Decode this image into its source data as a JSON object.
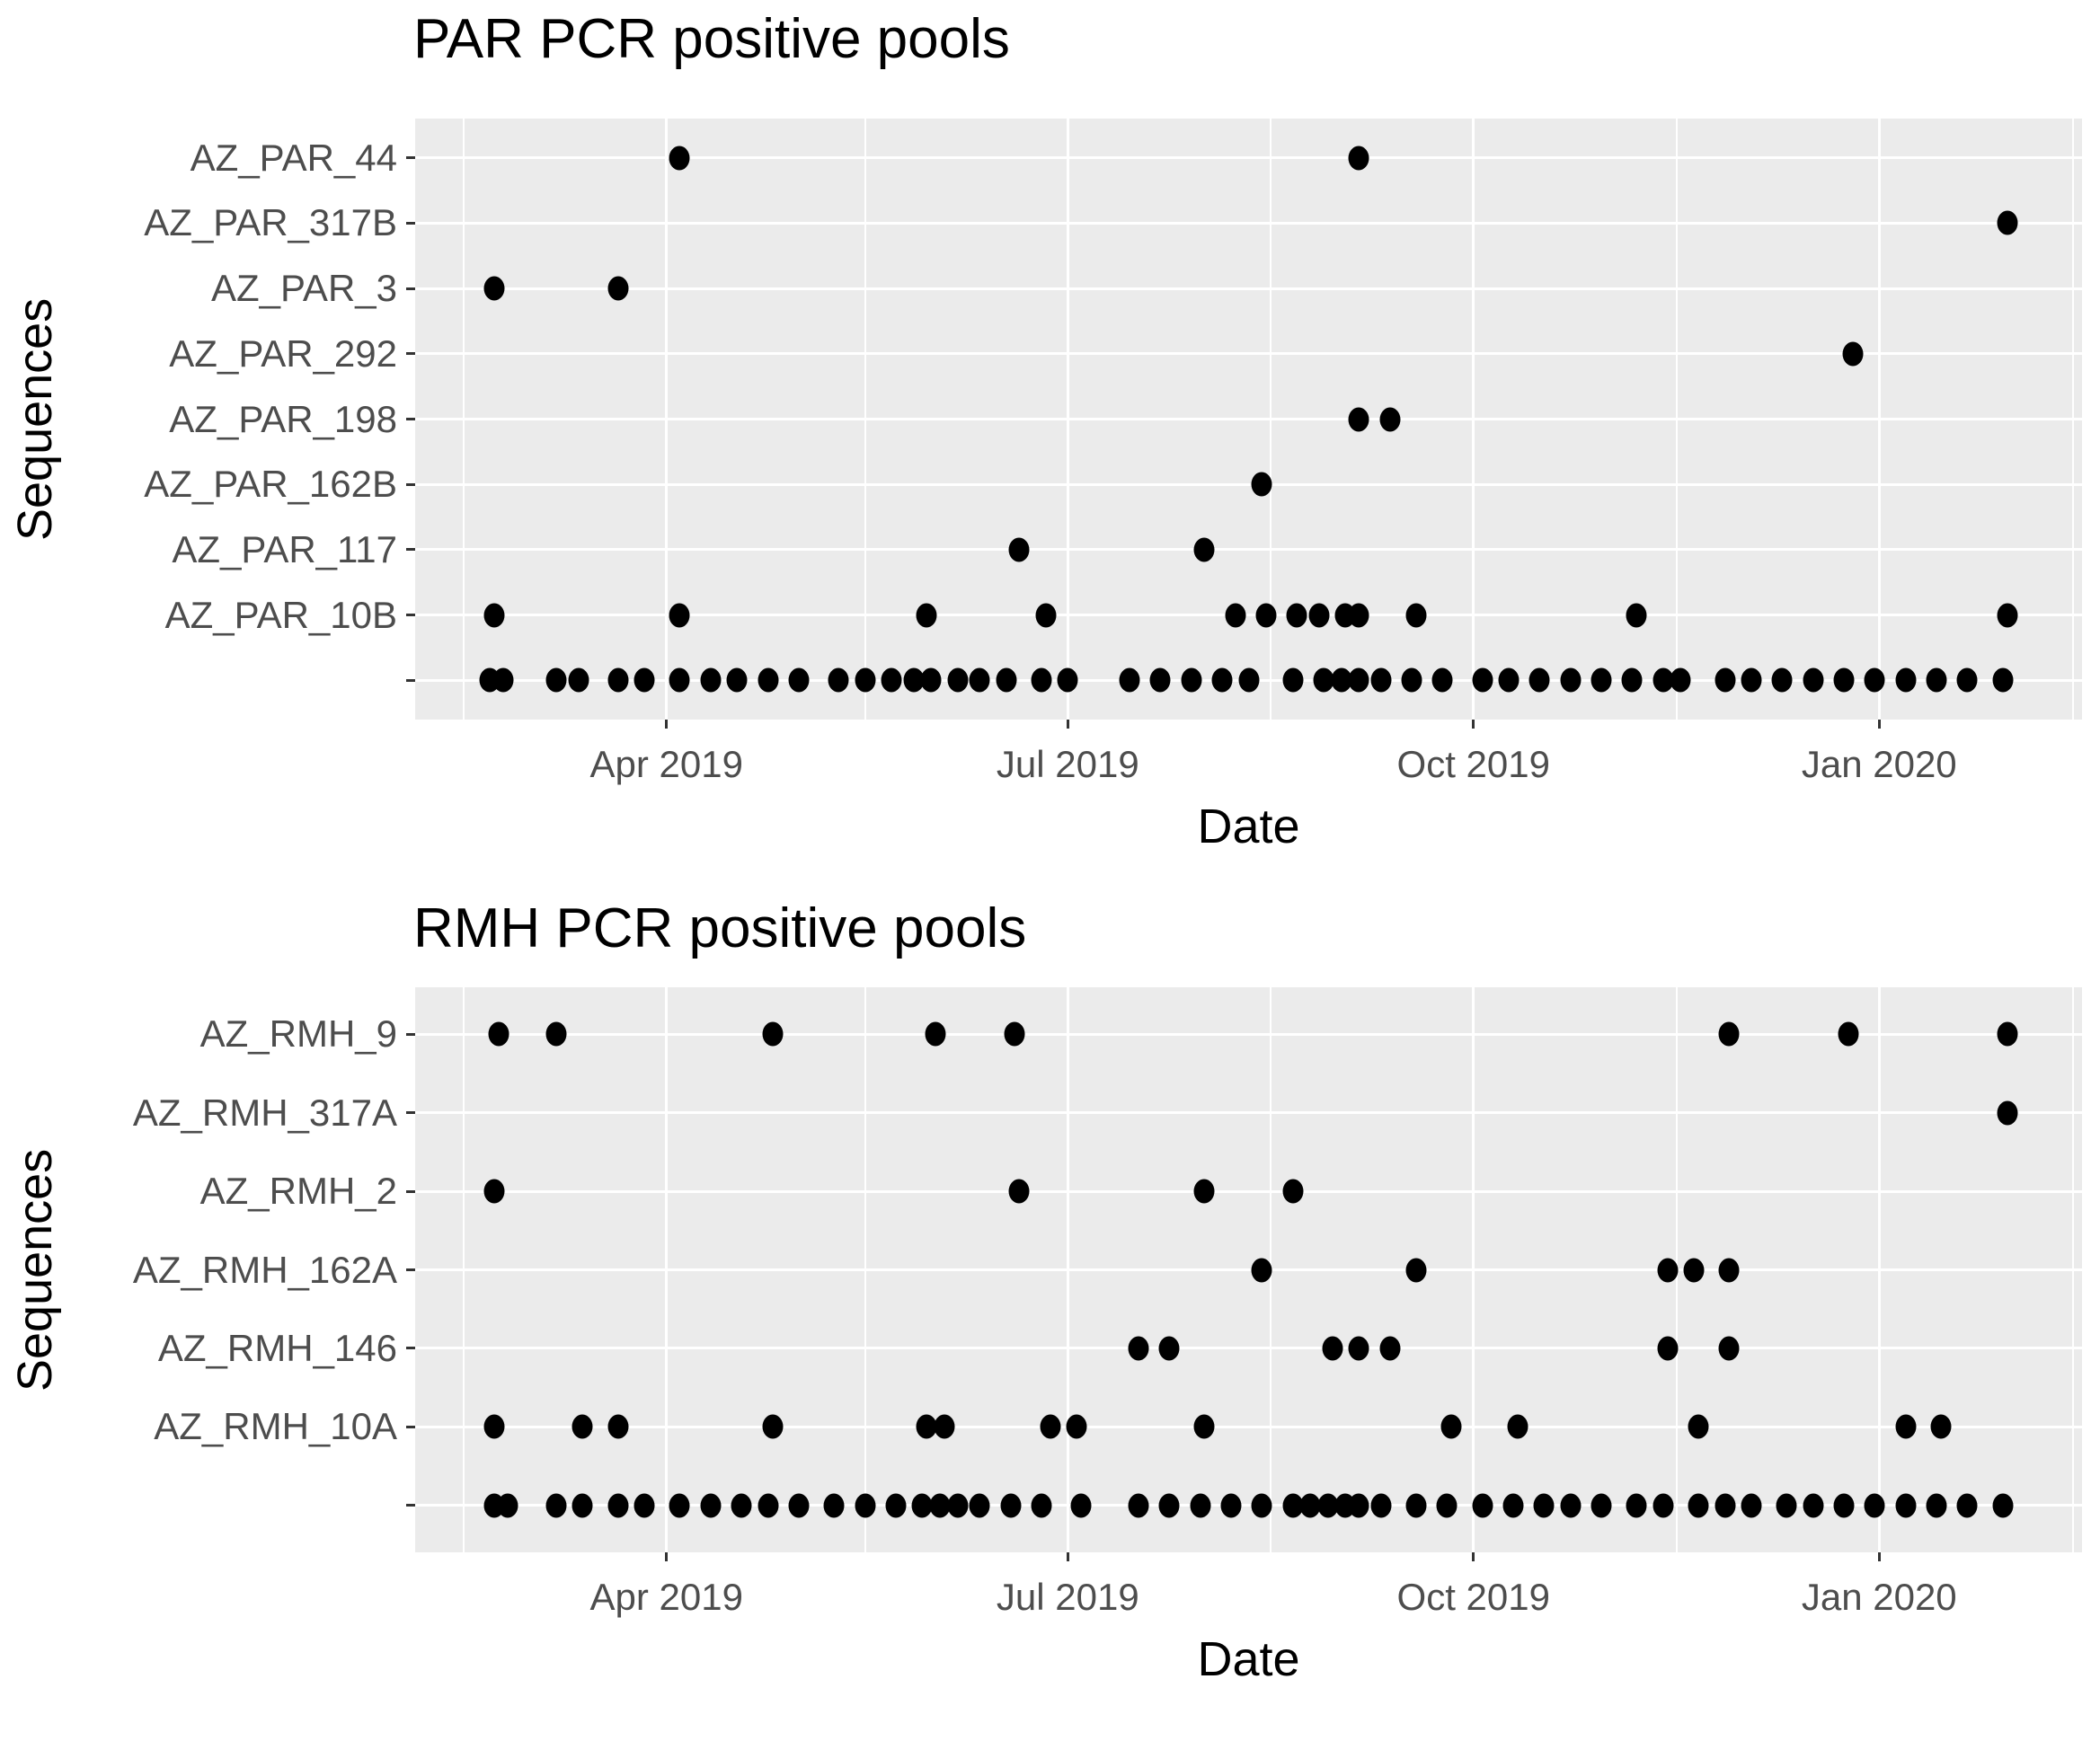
{
  "colors": {
    "background": "#ffffff",
    "panel_background": "#ebebeb",
    "gridline": "#ffffff",
    "dot": "#000000",
    "axis_text": "#4d4d4d",
    "title_text": "#000000",
    "tick_mark": "#333333"
  },
  "chart_data": [
    {
      "type": "scatter",
      "title": "PAR PCR positive pools",
      "xlabel": "Date",
      "ylabel": "Sequences",
      "grid": "on",
      "legend": "none",
      "x_domain": [
        "2019-02-03",
        "2020-02-16"
      ],
      "x_ticks": [
        {
          "date": "2019-04-01",
          "label": "Apr 2019"
        },
        {
          "date": "2019-07-01",
          "label": "Jul 2019"
        },
        {
          "date": "2019-10-01",
          "label": "Oct 2019"
        },
        {
          "date": "2020-01-01",
          "label": "Jan 2020"
        }
      ],
      "x_minor_gridlines": [
        "2019-02-14",
        "2019-05-16",
        "2019-08-16",
        "2019-11-16",
        "2020-02-14"
      ],
      "rows": [
        {
          "label": "AZ_PAR_44",
          "dates": [
            "2019-04-04",
            "2019-09-05"
          ]
        },
        {
          "label": "AZ_PAR_317B",
          "dates": [
            "2020-01-30"
          ]
        },
        {
          "label": "AZ_PAR_3",
          "dates": [
            "2019-02-21",
            "2019-03-21"
          ]
        },
        {
          "label": "AZ_PAR_292",
          "dates": [
            "2019-12-26"
          ]
        },
        {
          "label": "AZ_PAR_198",
          "dates": [
            "2019-09-05",
            "2019-09-12"
          ]
        },
        {
          "label": "AZ_PAR_162B",
          "dates": [
            "2019-08-14"
          ]
        },
        {
          "label": "AZ_PAR_117",
          "dates": [
            "2019-06-20",
            "2019-08-01"
          ]
        },
        {
          "label": "AZ_PAR_10B",
          "dates": [
            "2019-02-21",
            "2019-04-04",
            "2019-05-30",
            "2019-06-26",
            "2019-08-08",
            "2019-08-15",
            "2019-08-22",
            "2019-08-27",
            "2019-09-02",
            "2019-09-05",
            "2019-09-18",
            "2019-11-07",
            "2020-01-30"
          ]
        },
        {
          "label": "",
          "dates": [
            "2019-02-20",
            "2019-02-23",
            "2019-03-07",
            "2019-03-12",
            "2019-03-21",
            "2019-03-27",
            "2019-04-04",
            "2019-04-11",
            "2019-04-17",
            "2019-04-24",
            "2019-05-01",
            "2019-05-10",
            "2019-05-16",
            "2019-05-22",
            "2019-05-27",
            "2019-05-31",
            "2019-06-06",
            "2019-06-11",
            "2019-06-17",
            "2019-06-25",
            "2019-07-01",
            "2019-07-15",
            "2019-07-22",
            "2019-07-29",
            "2019-08-05",
            "2019-08-11",
            "2019-08-21",
            "2019-08-28",
            "2019-09-01",
            "2019-09-05",
            "2019-09-10",
            "2019-09-17",
            "2019-09-24",
            "2019-10-03",
            "2019-10-09",
            "2019-10-16",
            "2019-10-23",
            "2019-10-30",
            "2019-11-06",
            "2019-11-13",
            "2019-11-17",
            "2019-11-27",
            "2019-12-03",
            "2019-12-10",
            "2019-12-17",
            "2019-12-24",
            "2019-12-31",
            "2020-01-07",
            "2020-01-14",
            "2020-01-21",
            "2020-01-29"
          ]
        }
      ]
    },
    {
      "type": "scatter",
      "title": "RMH PCR positive pools",
      "xlabel": "Date",
      "ylabel": "Sequences",
      "grid": "on",
      "legend": "none",
      "x_domain": [
        "2019-02-03",
        "2020-02-16"
      ],
      "x_ticks": [
        {
          "date": "2019-04-01",
          "label": "Apr 2019"
        },
        {
          "date": "2019-07-01",
          "label": "Jul 2019"
        },
        {
          "date": "2019-10-01",
          "label": "Oct 2019"
        },
        {
          "date": "2020-01-01",
          "label": "Jan 2020"
        }
      ],
      "x_minor_gridlines": [
        "2019-02-14",
        "2019-05-16",
        "2019-08-16",
        "2019-11-16",
        "2020-02-14"
      ],
      "rows": [
        {
          "label": "AZ_RMH_9",
          "dates": [
            "2019-02-22",
            "2019-03-07",
            "2019-04-25",
            "2019-06-01",
            "2019-06-19",
            "2019-11-28",
            "2019-12-25",
            "2020-01-30"
          ]
        },
        {
          "label": "AZ_RMH_317A",
          "dates": [
            "2020-01-30"
          ]
        },
        {
          "label": "AZ_RMH_2",
          "dates": [
            "2019-02-21",
            "2019-06-20",
            "2019-08-01",
            "2019-08-21"
          ]
        },
        {
          "label": "AZ_RMH_162A",
          "dates": [
            "2019-08-14",
            "2019-09-18",
            "2019-11-14",
            "2019-11-20",
            "2019-11-28"
          ]
        },
        {
          "label": "AZ_RMH_146",
          "dates": [
            "2019-07-17",
            "2019-07-24",
            "2019-08-30",
            "2019-09-05",
            "2019-09-12",
            "2019-11-14",
            "2019-11-28"
          ]
        },
        {
          "label": "AZ_RMH_10A",
          "dates": [
            "2019-02-21",
            "2019-03-13",
            "2019-03-21",
            "2019-04-25",
            "2019-05-30",
            "2019-06-03",
            "2019-06-27",
            "2019-07-03",
            "2019-08-01",
            "2019-09-26",
            "2019-10-11",
            "2019-11-21",
            "2020-01-07",
            "2020-01-15"
          ]
        },
        {
          "label": "",
          "dates": [
            "2019-02-21",
            "2019-02-24",
            "2019-03-07",
            "2019-03-13",
            "2019-03-21",
            "2019-03-27",
            "2019-04-04",
            "2019-04-11",
            "2019-04-18",
            "2019-04-24",
            "2019-05-01",
            "2019-05-09",
            "2019-05-16",
            "2019-05-23",
            "2019-05-29",
            "2019-06-02",
            "2019-06-06",
            "2019-06-11",
            "2019-06-18",
            "2019-06-25",
            "2019-07-04",
            "2019-07-17",
            "2019-07-24",
            "2019-07-31",
            "2019-08-07",
            "2019-08-14",
            "2019-08-21",
            "2019-08-25",
            "2019-08-29",
            "2019-09-02",
            "2019-09-05",
            "2019-09-10",
            "2019-09-18",
            "2019-09-25",
            "2019-10-03",
            "2019-10-10",
            "2019-10-17",
            "2019-10-23",
            "2019-10-30",
            "2019-11-07",
            "2019-11-13",
            "2019-11-21",
            "2019-11-27",
            "2019-12-03",
            "2019-12-11",
            "2019-12-17",
            "2019-12-24",
            "2019-12-31",
            "2020-01-07",
            "2020-01-14",
            "2020-01-21",
            "2020-01-29"
          ]
        }
      ]
    }
  ]
}
